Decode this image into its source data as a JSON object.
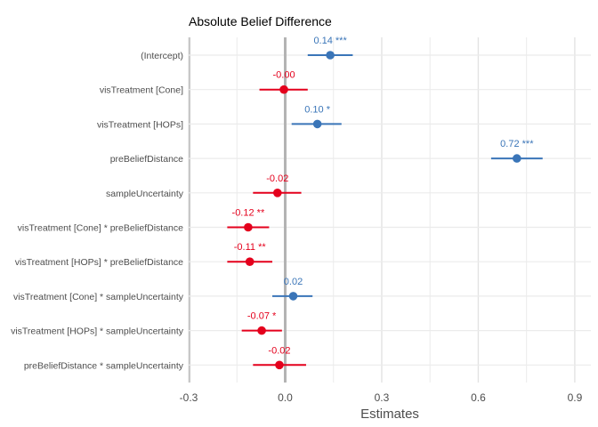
{
  "chart_data": {
    "type": "forest",
    "title": "Absolute Belief Difference",
    "xlabel": "Estimates",
    "xlim": [
      -0.3,
      0.95
    ],
    "xticks": [
      -0.3,
      0.0,
      0.3,
      0.6,
      0.9
    ],
    "xtick_labels": [
      "-0.3",
      "0.0",
      "0.3",
      "0.6",
      "0.9"
    ],
    "reference_line": 0,
    "colors": {
      "positive": "#3a75b8",
      "negative": "#e4001c",
      "reference": "#b3b3b3"
    },
    "terms": [
      {
        "name": "(Intercept)",
        "estimate": 0.14,
        "ci_low": 0.07,
        "ci_high": 0.21,
        "label": "0.14 ***"
      },
      {
        "name": "visTreatment [Cone]",
        "estimate": -0.004,
        "ci_low": -0.08,
        "ci_high": 0.07,
        "label": "-0.00"
      },
      {
        "name": "visTreatment [HOPs]",
        "estimate": 0.1,
        "ci_low": 0.02,
        "ci_high": 0.175,
        "label": "0.10 *"
      },
      {
        "name": "preBeliefDistance",
        "estimate": 0.72,
        "ci_low": 0.64,
        "ci_high": 0.8,
        "label": "0.72 ***"
      },
      {
        "name": "sampleUncertainty",
        "estimate": -0.024,
        "ci_low": -0.1,
        "ci_high": 0.05,
        "label": "-0.02"
      },
      {
        "name": "visTreatment [Cone] * preBeliefDistance",
        "estimate": -0.115,
        "ci_low": -0.18,
        "ci_high": -0.05,
        "label": "-0.12 **"
      },
      {
        "name": "visTreatment [HOPs] * preBeliefDistance",
        "estimate": -0.11,
        "ci_low": -0.18,
        "ci_high": -0.04,
        "label": "-0.11 **"
      },
      {
        "name": "visTreatment [Cone] * sampleUncertainty",
        "estimate": 0.025,
        "ci_low": -0.04,
        "ci_high": 0.085,
        "label": "0.02"
      },
      {
        "name": "visTreatment [HOPs] * sampleUncertainty",
        "estimate": -0.073,
        "ci_low": -0.135,
        "ci_high": -0.01,
        "label": "-0.07 *"
      },
      {
        "name": "preBeliefDistance * sampleUncertainty",
        "estimate": -0.018,
        "ci_low": -0.1,
        "ci_high": 0.065,
        "label": "-0.02"
      }
    ]
  }
}
